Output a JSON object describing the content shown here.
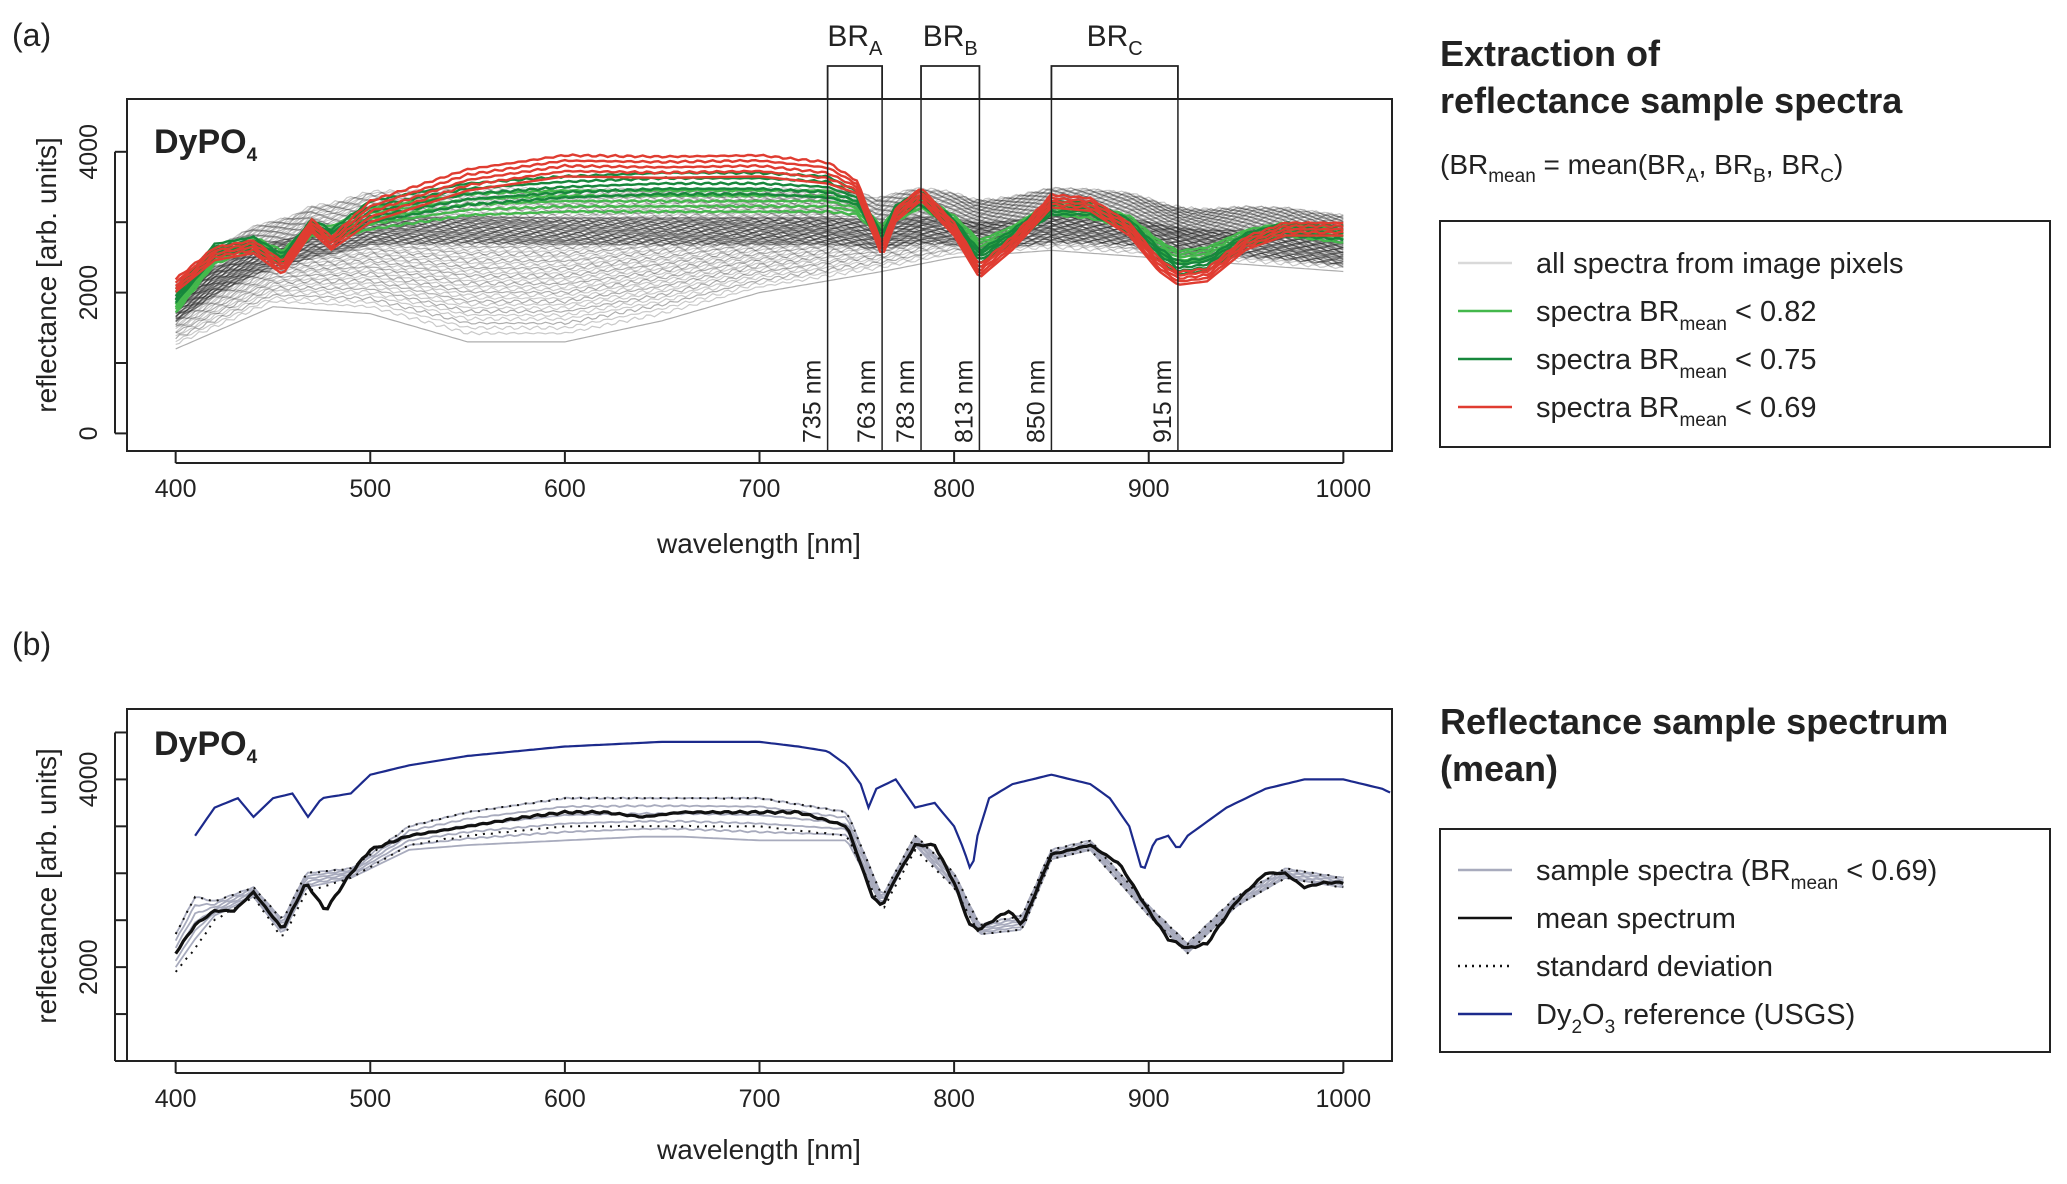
{
  "panel_a": {
    "panel_label": "(a)",
    "plot_title_main": "DyPO",
    "plot_title_sub": "4",
    "heading_line1": "Extraction of",
    "heading_line2": "reflectance sample spectra",
    "formula": {
      "p1": "(BR",
      "p1_sub": "mean",
      "p2": " = mean(BR",
      "p2_sub": "A",
      "p3": ", BR",
      "p3_sub": "B",
      "p4": ", BR",
      "p4_sub": "C",
      "p5": ")"
    },
    "legend": [
      {
        "text": "all spectra from image pixels",
        "sub": "",
        "tail": "",
        "color": "#d9d9d9"
      },
      {
        "text": "spectra BR",
        "sub": "mean",
        "tail": " < 0.82",
        "color": "#44b84c"
      },
      {
        "text": "spectra BR",
        "sub": "mean",
        "tail": " < 0.75",
        "color": "#17873c"
      },
      {
        "text": "spectra BR",
        "sub": "mean",
        "tail": " < 0.69",
        "color": "#e03c31"
      }
    ],
    "bands": [
      {
        "main": "BR",
        "sub": "A",
        "start": 735,
        "end": 763
      },
      {
        "main": "BR",
        "sub": "B",
        "start": 783,
        "end": 813
      },
      {
        "main": "BR",
        "sub": "C",
        "start": 850,
        "end": 915
      }
    ],
    "band_line_labels": [
      "735 nm",
      "763 nm",
      "783 nm",
      "813 nm",
      "850 nm",
      "915 nm"
    ]
  },
  "panel_b": {
    "panel_label": "(b)",
    "plot_title_main": "DyPO",
    "plot_title_sub": "4",
    "heading_line1": "Reflectance sample spectrum",
    "heading_line2": "(mean)",
    "legend": [
      {
        "text": "sample spectra (BR",
        "sub": "mean",
        "tail": " < 0.69)",
        "color": "#a8abbd",
        "style": "solid"
      },
      {
        "text": "mean spectrum",
        "sub": "",
        "tail": "",
        "color": "#111111",
        "style": "solid"
      },
      {
        "text": "standard deviation",
        "sub": "",
        "tail": "",
        "color": "#111111",
        "style": "dotted"
      },
      {
        "text": "Dy",
        "sub": "2",
        "mid": "O",
        "sub2": "3",
        "tail": " reference (USGS)",
        "color": "#1c2a8c",
        "style": "solid"
      }
    ]
  },
  "chart_data": [
    {
      "type": "line",
      "xlabel": "wavelength [nm]",
      "ylabel": "reflectance [arb. units]",
      "xlim": [
        375,
        1025
      ],
      "ylim": [
        -250,
        4750
      ],
      "xticks": [
        400,
        500,
        600,
        700,
        800,
        900,
        1000
      ],
      "yticks": [
        0,
        1000,
        2000,
        3000,
        4000
      ],
      "ytick_labels": [
        "0",
        "",
        "2000",
        "",
        "4000"
      ],
      "series": [
        {
          "name": "spectra BRmean < 0.69",
          "x": [
            400,
            420,
            440,
            455,
            470,
            480,
            500,
            550,
            600,
            650,
            700,
            735,
            750,
            763,
            770,
            783,
            800,
            813,
            830,
            850,
            870,
            890,
            905,
            915,
            930,
            950,
            970,
            1000
          ],
          "y": [
            2100,
            2550,
            2650,
            2350,
            2950,
            2700,
            3150,
            3600,
            3800,
            3780,
            3800,
            3700,
            3500,
            2600,
            3100,
            3400,
            2900,
            2300,
            2700,
            3300,
            3250,
            2900,
            2400,
            2200,
            2250,
            2700,
            2900,
            2900
          ]
        },
        {
          "name": "spectra BRmean < 0.75",
          "x": [
            400,
            420,
            440,
            455,
            470,
            480,
            500,
            550,
            600,
            650,
            700,
            735,
            750,
            763,
            770,
            783,
            800,
            813,
            830,
            850,
            870,
            890,
            905,
            915,
            930,
            950,
            970,
            1000
          ],
          "y": [
            1950,
            2600,
            2700,
            2450,
            2950,
            2800,
            3150,
            3400,
            3500,
            3550,
            3550,
            3500,
            3350,
            2750,
            3150,
            3350,
            2950,
            2500,
            2800,
            3200,
            3200,
            2950,
            2550,
            2350,
            2400,
            2750,
            2900,
            2850
          ]
        },
        {
          "name": "spectra BRmean < 0.82",
          "x": [
            400,
            420,
            440,
            455,
            470,
            480,
            500,
            550,
            600,
            650,
            700,
            735,
            750,
            763,
            770,
            783,
            800,
            813,
            830,
            850,
            870,
            890,
            905,
            915,
            930,
            950,
            970,
            1000
          ],
          "y": [
            1800,
            2500,
            2700,
            2500,
            2900,
            2850,
            3050,
            3250,
            3300,
            3300,
            3300,
            3300,
            3200,
            2850,
            3100,
            3300,
            3000,
            2650,
            2850,
            3200,
            3150,
            3000,
            2650,
            2500,
            2550,
            2800,
            2900,
            2800
          ]
        },
        {
          "name": "all spectra from image pixels (upper envelope)",
          "x": [
            400,
            450,
            500,
            600,
            700,
            763,
            800,
            850,
            900,
            1000
          ],
          "y": [
            2600,
            3200,
            3450,
            3400,
            3400,
            3400,
            3450,
            3450,
            3450,
            3200
          ]
        },
        {
          "name": "all spectra from image pixels (lower envelope)",
          "x": [
            400,
            450,
            500,
            550,
            600,
            650,
            700,
            763,
            800,
            850,
            900,
            1000
          ],
          "y": [
            1200,
            1800,
            1700,
            1300,
            1300,
            1600,
            2000,
            2300,
            2500,
            2600,
            2500,
            2300
          ]
        }
      ],
      "band_lines": [
        735,
        763,
        783,
        813,
        850,
        915
      ]
    },
    {
      "type": "line",
      "xlabel": "wavelength [nm]",
      "ylabel": "reflectance [arb. units]",
      "xlim": [
        375,
        1025
      ],
      "ylim": [
        1000,
        4750
      ],
      "xticks": [
        400,
        500,
        600,
        700,
        800,
        900,
        1000
      ],
      "yticks": [
        1000,
        1500,
        2000,
        2500,
        3000,
        3500,
        4000,
        4500
      ],
      "ytick_labels": [
        "",
        "",
        "2000",
        "",
        "",
        "",
        "4000",
        ""
      ],
      "series": [
        {
          "name": "mean spectrum",
          "x": [
            400,
            410,
            420,
            430,
            440,
            455,
            467,
            477,
            490,
            500,
            520,
            550,
            580,
            600,
            620,
            640,
            660,
            680,
            700,
            720,
            745,
            752,
            758,
            763,
            770,
            780,
            790,
            800,
            808,
            813,
            820,
            828,
            835,
            850,
            870,
            885,
            900,
            910,
            920,
            930,
            945,
            960,
            970,
            980,
            990,
            1000
          ],
          "y": [
            2150,
            2450,
            2600,
            2600,
            2800,
            2400,
            2900,
            2600,
            3000,
            3250,
            3400,
            3500,
            3600,
            3650,
            3650,
            3600,
            3650,
            3650,
            3650,
            3650,
            3500,
            3100,
            2750,
            2650,
            2950,
            3300,
            3300,
            2900,
            2450,
            2400,
            2500,
            2600,
            2450,
            3200,
            3300,
            3100,
            2600,
            2300,
            2200,
            2250,
            2700,
            3000,
            3000,
            2850,
            2900,
            2900
          ]
        },
        {
          "name": "standard deviation (upper)",
          "x": [
            400,
            410,
            420,
            440,
            455,
            467,
            490,
            520,
            550,
            600,
            650,
            700,
            745,
            763,
            780,
            800,
            813,
            835,
            850,
            870,
            900,
            920,
            945,
            970,
            1000
          ],
          "y": [
            2350,
            2750,
            2700,
            2850,
            2500,
            3000,
            3050,
            3500,
            3650,
            3800,
            3800,
            3800,
            3650,
            2750,
            3400,
            3000,
            2450,
            2550,
            3250,
            3350,
            2650,
            2250,
            2750,
            3050,
            2950
          ]
        },
        {
          "name": "standard deviation (lower)",
          "x": [
            400,
            410,
            420,
            440,
            455,
            467,
            490,
            520,
            550,
            600,
            650,
            700,
            745,
            763,
            780,
            800,
            813,
            835,
            850,
            870,
            900,
            920,
            945,
            970,
            1000
          ],
          "y": [
            1950,
            2200,
            2500,
            2750,
            2300,
            2800,
            2950,
            3300,
            3400,
            3500,
            3500,
            3500,
            3400,
            2600,
            3250,
            2850,
            2350,
            2400,
            3150,
            3250,
            2550,
            2150,
            2650,
            2950,
            2850
          ]
        },
        {
          "name": "sample spectra (lower)",
          "x": [
            400,
            410,
            420,
            440,
            455,
            467,
            490,
            520,
            550,
            600,
            650,
            700,
            745,
            763,
            780,
            800,
            813,
            835,
            850,
            870,
            900,
            920,
            945,
            970,
            1000
          ],
          "y": [
            2000,
            2300,
            2550,
            2750,
            2350,
            2850,
            2950,
            3250,
            3300,
            3350,
            3400,
            3350,
            3350,
            2650,
            3300,
            2850,
            2350,
            2400,
            3150,
            3250,
            2550,
            2150,
            2650,
            2950,
            2850
          ]
        },
        {
          "name": "Dy2O3 reference (USGS)",
          "x": [
            410,
            420,
            432,
            440,
            450,
            460,
            468,
            475,
            490,
            500,
            520,
            550,
            600,
            650,
            700,
            720,
            735,
            745,
            752,
            756,
            760,
            770,
            780,
            790,
            800,
            805,
            809,
            812,
            818,
            830,
            850,
            870,
            880,
            890,
            897,
            903,
            910,
            915,
            920,
            940,
            960,
            980,
            1000,
            1010,
            1020,
            1025
          ],
          "y": [
            3400,
            3700,
            3800,
            3600,
            3800,
            3850,
            3600,
            3800,
            3850,
            4050,
            4150,
            4250,
            4350,
            4400,
            4400,
            4350,
            4300,
            4150,
            3950,
            3700,
            3900,
            4000,
            3700,
            3750,
            3500,
            3250,
            3000,
            3400,
            3800,
            3950,
            4050,
            3950,
            3800,
            3500,
            3000,
            3350,
            3400,
            3250,
            3400,
            3700,
            3900,
            4000,
            4000,
            3950,
            3900,
            3850
          ]
        }
      ]
    }
  ]
}
